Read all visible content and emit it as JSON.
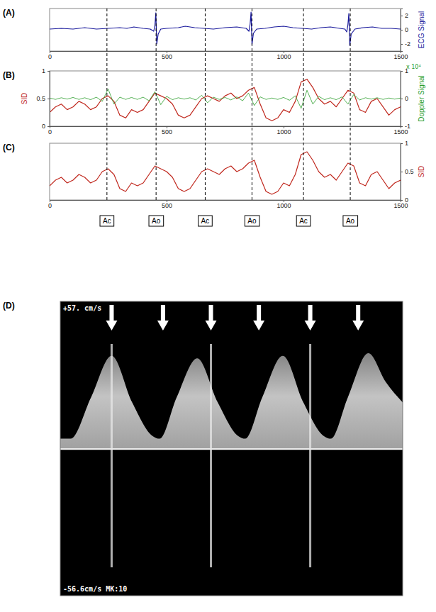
{
  "chart_data": [
    {
      "type": "line",
      "title": "(A)",
      "ylabel": "ECG Signal",
      "x": [
        0,
        50,
        100,
        150,
        200,
        250,
        300,
        330,
        360,
        400,
        430,
        445,
        450,
        454,
        458,
        464,
        475,
        500,
        550,
        580,
        620,
        660,
        700,
        750,
        800,
        840,
        852,
        857,
        861,
        865,
        871,
        885,
        920,
        960,
        1000,
        1040,
        1080,
        1120,
        1160,
        1200,
        1240,
        1262,
        1270,
        1275,
        1279,
        1283,
        1289,
        1305,
        1340,
        1380,
        1420,
        1460,
        1500
      ],
      "xlim": [
        0,
        1500
      ],
      "xticks": [
        0,
        500,
        1000,
        1500
      ],
      "ylim": [
        -3,
        3
      ],
      "yticks": [
        -2,
        0,
        2
      ],
      "series": [
        {
          "color": "#1a1a9c",
          "values": [
            0.1,
            0.2,
            0.1,
            0.3,
            0.1,
            0.2,
            0.3,
            0.2,
            0.4,
            0.2,
            0.1,
            -0.2,
            0.6,
            2.4,
            -2.0,
            -0.6,
            0.1,
            0.2,
            0.3,
            0.5,
            0.3,
            0.2,
            0.1,
            0.3,
            0.4,
            0.2,
            -0.2,
            0.8,
            2.5,
            -2.1,
            -0.5,
            0.1,
            0.2,
            0.4,
            0.5,
            0.3,
            0.2,
            0.1,
            0.3,
            0.4,
            0.2,
            0.1,
            -0.3,
            0.7,
            2.3,
            -2.2,
            -0.6,
            0.1,
            0.3,
            0.4,
            0.2,
            0.2,
            0.1
          ]
        }
      ]
    },
    {
      "type": "line",
      "title": "(B)",
      "ylabel": "SID",
      "y2label": "Doppler Signal",
      "y2_scale_label": "x 10⁴",
      "x": [
        0,
        25,
        50,
        75,
        100,
        125,
        150,
        175,
        200,
        225,
        250,
        275,
        300,
        325,
        350,
        375,
        400,
        425,
        450,
        475,
        500,
        525,
        550,
        575,
        600,
        625,
        650,
        675,
        700,
        725,
        750,
        775,
        800,
        825,
        850,
        875,
        900,
        925,
        950,
        975,
        1000,
        1025,
        1050,
        1075,
        1100,
        1125,
        1150,
        1175,
        1200,
        1225,
        1250,
        1275,
        1300,
        1325,
        1350,
        1375,
        1400,
        1425,
        1450,
        1475,
        1500
      ],
      "xlim": [
        0,
        1500
      ],
      "xticks": [
        0,
        500,
        1000,
        1500
      ],
      "ylim": [
        0,
        1
      ],
      "yticks": [
        0,
        0.5,
        1
      ],
      "y2lim": [
        -1,
        1
      ],
      "y2ticks": [
        -1,
        0,
        1
      ],
      "series": [
        {
          "color": "#c0281e",
          "values": [
            0.25,
            0.35,
            0.4,
            0.3,
            0.35,
            0.45,
            0.4,
            0.3,
            0.35,
            0.5,
            0.55,
            0.45,
            0.2,
            0.15,
            0.3,
            0.25,
            0.3,
            0.45,
            0.6,
            0.55,
            0.5,
            0.4,
            0.2,
            0.15,
            0.2,
            0.35,
            0.5,
            0.55,
            0.5,
            0.45,
            0.55,
            0.6,
            0.5,
            0.55,
            0.65,
            0.7,
            0.4,
            0.15,
            0.1,
            0.15,
            0.3,
            0.25,
            0.45,
            0.8,
            0.85,
            0.7,
            0.5,
            0.4,
            0.45,
            0.35,
            0.5,
            0.65,
            0.6,
            0.3,
            0.25,
            0.45,
            0.5,
            0.35,
            0.2,
            0.3,
            0.35
          ]
        },
        {
          "color": "#2a9d2a",
          "axis": "y2",
          "values": [
            0.02,
            -0.03,
            0.03,
            -0.02,
            0.04,
            -0.03,
            0.03,
            -0.04,
            0.05,
            -0.1,
            0.35,
            -0.2,
            0.05,
            -0.03,
            0.04,
            -0.03,
            0.05,
            -0.08,
            0.25,
            -0.22,
            0.08,
            -0.04,
            0.03,
            -0.02,
            0.03,
            -0.05,
            0.12,
            -0.15,
            0.05,
            -0.03,
            0.04,
            -0.05,
            0.06,
            -0.08,
            0.2,
            -0.25,
            0.06,
            -0.03,
            0.02,
            -0.03,
            0.04,
            -0.06,
            0.1,
            -0.35,
            0.3,
            -0.2,
            0.08,
            -0.04,
            0.03,
            -0.04,
            0.06,
            -0.2,
            0.15,
            -0.05,
            0.03,
            -0.02,
            0.03,
            -0.03,
            0.02,
            -0.02,
            0.02
          ]
        }
      ]
    },
    {
      "type": "line",
      "title": "(C)",
      "ylabel": "SID",
      "x": [
        0,
        25,
        50,
        75,
        100,
        125,
        150,
        175,
        200,
        225,
        250,
        275,
        300,
        325,
        350,
        375,
        400,
        425,
        450,
        475,
        500,
        525,
        550,
        575,
        600,
        625,
        650,
        675,
        700,
        725,
        750,
        775,
        800,
        825,
        850,
        875,
        900,
        925,
        950,
        975,
        1000,
        1025,
        1050,
        1075,
        1100,
        1125,
        1150,
        1175,
        1200,
        1225,
        1250,
        1275,
        1300,
        1325,
        1350,
        1375,
        1400,
        1425,
        1450,
        1475,
        1500
      ],
      "xlim": [
        0,
        1500
      ],
      "xticks": [
        0,
        500,
        1000,
        1500
      ],
      "ylim": [
        0,
        1
      ],
      "yticks": [
        0,
        0.5,
        1
      ],
      "series": [
        {
          "color": "#c0281e",
          "values": [
            0.25,
            0.35,
            0.4,
            0.3,
            0.35,
            0.45,
            0.4,
            0.3,
            0.35,
            0.5,
            0.55,
            0.45,
            0.2,
            0.15,
            0.3,
            0.25,
            0.3,
            0.45,
            0.6,
            0.55,
            0.5,
            0.4,
            0.2,
            0.15,
            0.2,
            0.35,
            0.5,
            0.55,
            0.5,
            0.45,
            0.55,
            0.6,
            0.5,
            0.55,
            0.65,
            0.7,
            0.4,
            0.15,
            0.1,
            0.15,
            0.3,
            0.25,
            0.45,
            0.8,
            0.85,
            0.7,
            0.5,
            0.4,
            0.45,
            0.35,
            0.5,
            0.65,
            0.6,
            0.3,
            0.25,
            0.45,
            0.5,
            0.35,
            0.2,
            0.3,
            0.35
          ]
        }
      ],
      "events": {
        "x": [
          245,
          455,
          665,
          865,
          1085,
          1285
        ],
        "labels": [
          "Ac",
          "Ao",
          "Ac",
          "Ao",
          "Ac",
          "Ao"
        ]
      }
    },
    {
      "type": "spectrogram",
      "title": "(D)",
      "top_label": "+57. cm/s",
      "bottom_label": "-56.6cm/s MK:10",
      "xlim": [
        0,
        100
      ],
      "ylim": [
        -56.6,
        57
      ],
      "tick_labels": false,
      "envelope": {
        "x": [
          0,
          3,
          9,
          15,
          21,
          27,
          29,
          34,
          40,
          46,
          52,
          54,
          59,
          65,
          71,
          77,
          79,
          84,
          90,
          95,
          100
        ],
        "values": [
          4,
          4,
          20,
          36,
          18,
          5,
          4,
          20,
          35,
          18,
          5,
          4,
          20,
          36,
          18,
          5,
          4,
          20,
          37,
          26,
          18
        ]
      },
      "arrows": [
        15,
        30,
        44,
        58,
        73,
        87
      ],
      "clicks": [
        15,
        44,
        73
      ]
    }
  ]
}
